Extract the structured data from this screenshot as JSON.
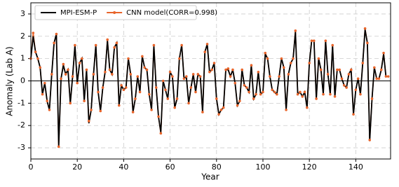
{
  "chart_data": {
    "type": "line",
    "xlabel": "Year",
    "ylabel": "Anomaly (Lab A)",
    "x": [
      0,
      1,
      2,
      3,
      4,
      5,
      6,
      7,
      8,
      9,
      10,
      11,
      12,
      13,
      14,
      15,
      16,
      17,
      18,
      19,
      20,
      21,
      22,
      23,
      24,
      25,
      26,
      27,
      28,
      29,
      30,
      31,
      32,
      33,
      34,
      35,
      36,
      37,
      38,
      39,
      40,
      41,
      42,
      43,
      44,
      45,
      46,
      47,
      48,
      49,
      50,
      51,
      52,
      53,
      54,
      55,
      56,
      57,
      58,
      59,
      60,
      61,
      62,
      63,
      64,
      65,
      66,
      67,
      68,
      69,
      70,
      71,
      72,
      73,
      74,
      75,
      76,
      77,
      78,
      79,
      80,
      81,
      82,
      83,
      84,
      85,
      86,
      87,
      88,
      89,
      90,
      91,
      92,
      93,
      94,
      95,
      96,
      97,
      98,
      99,
      100,
      101,
      102,
      103,
      104,
      105,
      106,
      107,
      108,
      109,
      110,
      111,
      112,
      113,
      114,
      115,
      116,
      117,
      118,
      119,
      120,
      121,
      122,
      123,
      124,
      125,
      126,
      127,
      128,
      129,
      130,
      131,
      132,
      133,
      134,
      135,
      136,
      137,
      138,
      139,
      140,
      141,
      142,
      143,
      144,
      145,
      146,
      147,
      148,
      149,
      150,
      151,
      152,
      153,
      154
    ],
    "series": [
      {
        "name": "MPI-ESM-P",
        "color": "#000000",
        "marker": false,
        "values": [
          1.0,
          2.0,
          1.3,
          1.0,
          0.6,
          -0.6,
          -0.1,
          -0.9,
          -1.3,
          0.3,
          1.7,
          2.1,
          -2.95,
          0.1,
          0.7,
          0.3,
          0.5,
          -1.0,
          0.2,
          1.6,
          -0.1,
          0.8,
          1.0,
          -0.9,
          0.5,
          -1.9,
          -1.3,
          0.3,
          1.6,
          -0.5,
          -1.35,
          -0.3,
          0.4,
          1.8,
          0.5,
          0.3,
          1.5,
          1.7,
          -1.1,
          -0.2,
          -0.4,
          -0.3,
          1.0,
          0.3,
          -1.4,
          -0.8,
          0.2,
          -0.5,
          1.1,
          0.6,
          0.5,
          -0.6,
          -1.3,
          1.6,
          -0.3,
          -1.6,
          -2.3,
          0.0,
          -0.4,
          -0.8,
          0.4,
          0.2,
          -1.2,
          -0.8,
          1.0,
          1.6,
          0.1,
          0.2,
          -1.0,
          -0.3,
          0.3,
          -0.5,
          0.3,
          0.2,
          -1.4,
          1.3,
          1.65,
          0.4,
          0.5,
          0.8,
          -0.8,
          -1.5,
          -1.3,
          -1.2,
          0.5,
          0.5,
          0.2,
          0.5,
          -0.1,
          -1.1,
          -0.9,
          0.5,
          -0.2,
          -0.3,
          -0.5,
          0.7,
          -0.8,
          -0.6,
          0.4,
          -0.6,
          -0.5,
          1.2,
          1.0,
          0.2,
          -0.4,
          -0.5,
          -0.6,
          0.2,
          1.0,
          0.6,
          -1.3,
          0.3,
          0.8,
          1.0,
          2.2,
          -0.6,
          -0.5,
          -0.7,
          -0.5,
          -1.2,
          0.8,
          1.8,
          1.8,
          -0.8,
          1.0,
          0.5,
          -0.6,
          1.8,
          0.3,
          -0.6,
          1.6,
          -0.7,
          0.5,
          0.5,
          0.1,
          -0.2,
          -0.3,
          0.3,
          0.5,
          -1.5,
          -0.4,
          0.1,
          -0.6,
          0.8,
          2.3,
          1.7,
          -2.7,
          -0.8,
          0.6,
          0.1,
          0.1,
          0.5,
          1.2,
          0.2,
          0.2
        ]
      },
      {
        "name": "CNN model(CORR=0.998)",
        "color": "#e8642a",
        "marker": true,
        "values": [
          1.0,
          2.15,
          1.3,
          1.0,
          0.6,
          -0.6,
          -0.1,
          -0.9,
          -1.3,
          0.3,
          1.7,
          2.1,
          -2.95,
          0.1,
          0.75,
          0.3,
          0.5,
          -1.0,
          0.2,
          1.6,
          -0.1,
          0.8,
          1.0,
          -0.9,
          0.5,
          -1.8,
          -1.3,
          0.3,
          1.6,
          -0.5,
          -1.35,
          -0.3,
          0.4,
          1.85,
          0.5,
          0.3,
          1.5,
          1.7,
          -1.1,
          -0.2,
          -0.4,
          -0.3,
          1.0,
          0.3,
          -1.4,
          -0.8,
          0.2,
          -0.5,
          1.1,
          0.6,
          0.5,
          -0.6,
          -1.3,
          1.6,
          -0.3,
          -1.6,
          -2.35,
          0.0,
          -0.4,
          -0.8,
          0.4,
          0.2,
          -1.2,
          -0.8,
          1.0,
          1.6,
          0.1,
          0.2,
          -1.0,
          -0.3,
          0.3,
          -0.5,
          0.3,
          0.2,
          -1.4,
          1.3,
          1.65,
          0.4,
          0.5,
          0.8,
          -0.8,
          -1.5,
          -1.3,
          -1.2,
          0.5,
          0.55,
          0.2,
          0.5,
          -0.1,
          -1.1,
          -0.9,
          0.5,
          -0.2,
          -0.3,
          -0.5,
          0.7,
          -0.8,
          -0.6,
          0.4,
          -0.6,
          -0.5,
          1.25,
          1.0,
          0.2,
          -0.4,
          -0.5,
          -0.6,
          0.2,
          1.0,
          0.6,
          -1.3,
          0.3,
          0.8,
          1.0,
          2.25,
          -0.6,
          -0.5,
          -0.7,
          -0.5,
          -1.2,
          0.8,
          1.8,
          1.8,
          -0.8,
          1.0,
          0.5,
          -0.6,
          1.8,
          0.3,
          -0.6,
          1.6,
          -0.7,
          0.5,
          0.5,
          0.1,
          -0.2,
          -0.3,
          0.3,
          0.5,
          -1.5,
          -0.4,
          0.1,
          -0.6,
          0.8,
          2.35,
          1.7,
          -2.65,
          -0.8,
          0.6,
          0.1,
          0.1,
          0.5,
          1.25,
          0.2,
          0.2
        ]
      }
    ],
    "xlim": [
      0,
      155
    ],
    "ylim": [
      -3.5,
      3.5
    ],
    "xticks": [
      0,
      20,
      40,
      60,
      80,
      100,
      120,
      140
    ],
    "yticks": [
      -3,
      -2,
      -1,
      0,
      1,
      2,
      3
    ],
    "grid": true,
    "legend": "upper left"
  }
}
